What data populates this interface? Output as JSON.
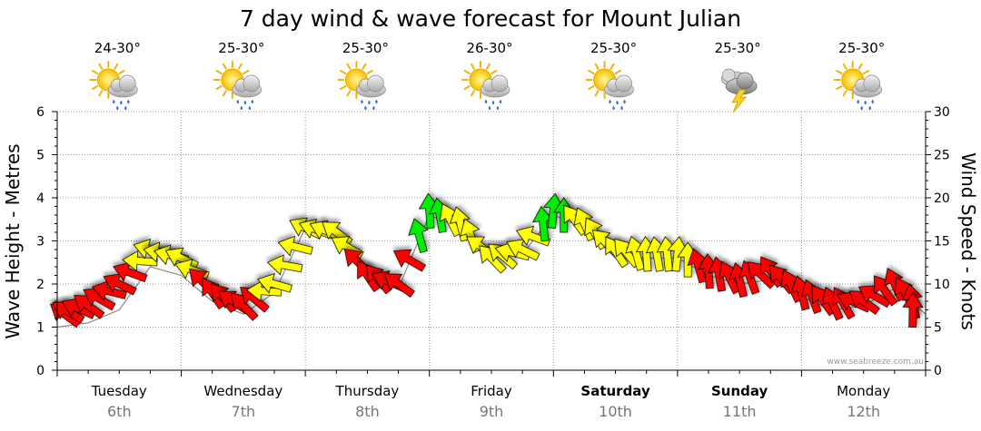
{
  "chart_data": {
    "type": "line",
    "title": "7 day wind & wave forecast for Mount Julian",
    "ylabel_left": "Wave Height - Metres",
    "ylabel_right": "Wind Speed - Knots",
    "left_ylim": [
      0,
      6
    ],
    "right_ylim": [
      0,
      30
    ],
    "left_ticks": [
      "0",
      "1",
      "2",
      "3",
      "4",
      "5",
      "6"
    ],
    "right_ticks": [
      "0",
      "5",
      "10",
      "15",
      "20",
      "25",
      "30"
    ],
    "grid": true,
    "credit": "www.seabreeze.com.au",
    "days": [
      {
        "name": "Tuesday",
        "date": "6th",
        "temp": "24-30°",
        "icon": "sun-cloud-rain-icon",
        "bold": false
      },
      {
        "name": "Wednesday",
        "date": "7th",
        "temp": "25-30°",
        "icon": "sun-cloud-rain-icon",
        "bold": false
      },
      {
        "name": "Thursday",
        "date": "8th",
        "temp": "25-30°",
        "icon": "sun-cloud-rain-icon",
        "bold": false
      },
      {
        "name": "Friday",
        "date": "9th",
        "temp": "26-30°",
        "icon": "sun-cloud-rain-icon",
        "bold": false
      },
      {
        "name": "Saturday",
        "date": "10th",
        "temp": "25-30°",
        "icon": "sun-cloud-rain-icon",
        "bold": true
      },
      {
        "name": "Sunday",
        "date": "11th",
        "temp": "25-30°",
        "icon": "storm-cloud-icon",
        "bold": true
      },
      {
        "name": "Monday",
        "date": "12th",
        "temp": "25-30°",
        "icon": "sun-cloud-rain-icon",
        "bold": false
      }
    ],
    "wind_colors": {
      "strong": "#ff0000",
      "moderate": "#ffff00",
      "light": "#00ee00"
    },
    "series": [
      {
        "name": "wind",
        "unit": "knots",
        "x": [
          0.0,
          0.25,
          0.5,
          0.75,
          1.0,
          1.25,
          1.5,
          1.75,
          2.0,
          2.25,
          2.5,
          2.75,
          3.0,
          3.25,
          3.5,
          3.75,
          4.0,
          4.25,
          4.5,
          4.75,
          5.0,
          5.25,
          5.5,
          5.75,
          6.0,
          6.25,
          6.5,
          6.75,
          7.0
        ],
        "values": [
          6.5,
          7.5,
          10,
          14,
          13,
          9,
          7.5,
          10,
          16.5,
          16,
          11,
          10,
          18.5,
          17,
          13,
          14,
          18.5,
          17,
          13.8,
          13.5,
          13.5,
          11.5,
          10.5,
          11.5,
          9,
          7.8,
          8,
          10,
          7
        ],
        "directions_deg": [
          150,
          150,
          160,
          170,
          160,
          130,
          140,
          170,
          160,
          150,
          130,
          150,
          100,
          110,
          140,
          160,
          90,
          120,
          130,
          100,
          90,
          100,
          110,
          130,
          110,
          120,
          150,
          120,
          95
        ],
        "categories": [
          "strong",
          "strong",
          "strong",
          "moderate",
          "moderate",
          "strong",
          "strong",
          "moderate",
          "moderate",
          "moderate",
          "strong",
          "strong",
          "light",
          "moderate",
          "moderate",
          "moderate",
          "light",
          "moderate",
          "moderate",
          "moderate",
          "moderate",
          "strong",
          "strong",
          "strong",
          "strong",
          "strong",
          "strong",
          "strong",
          "strong"
        ]
      },
      {
        "name": "wave",
        "unit": "metres",
        "x": [
          0.0,
          0.25,
          0.5,
          0.75,
          1.0,
          1.25,
          1.5,
          1.75,
          2.0,
          2.25,
          2.5,
          2.75,
          3.0,
          3.25,
          3.5,
          3.75,
          4.0,
          4.25,
          4.5,
          4.75,
          5.0,
          5.25,
          5.5,
          5.75,
          6.0,
          6.25,
          6.5,
          6.75,
          7.0
        ],
        "values": [
          1.0,
          1.1,
          1.4,
          2.4,
          2.2,
          1.6,
          1.3,
          1.8,
          3.3,
          3.3,
          2.1,
          1.9,
          3.6,
          3.3,
          2.6,
          2.7,
          3.6,
          3.3,
          2.6,
          2.6,
          2.6,
          2.2,
          2.0,
          2.1,
          1.7,
          1.4,
          1.5,
          1.9,
          1.3
        ]
      }
    ]
  }
}
